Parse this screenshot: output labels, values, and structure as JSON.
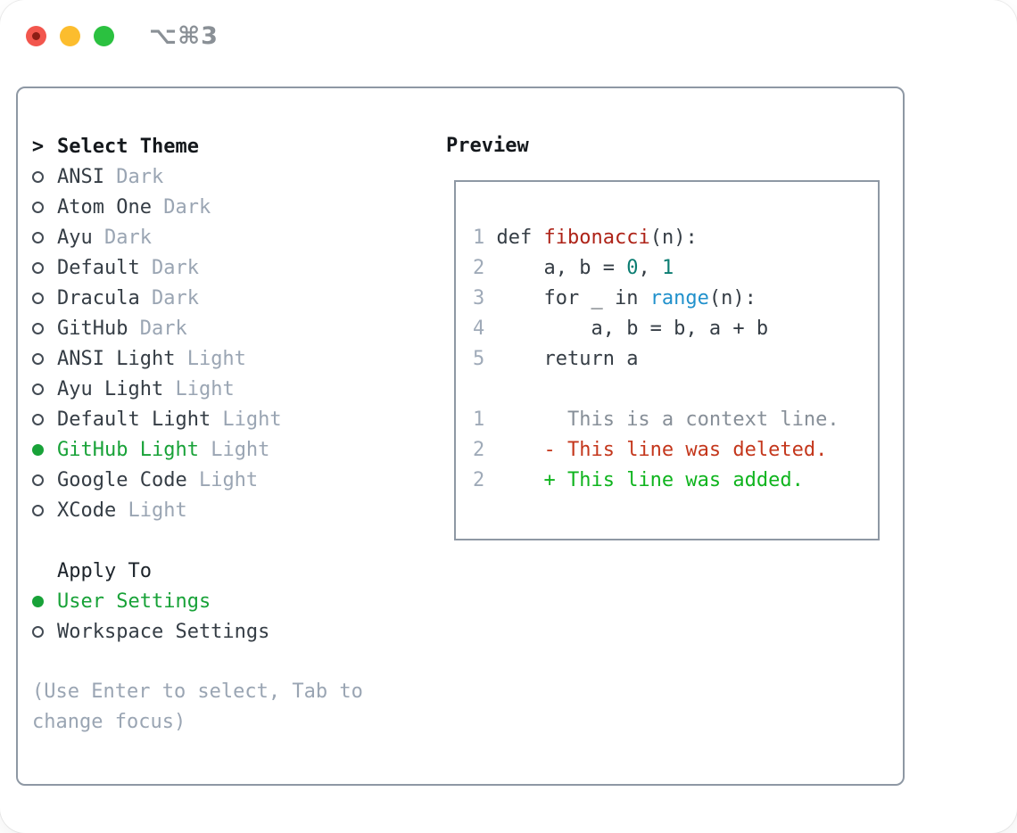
{
  "window": {
    "titlebar_shortcut": "⌥⌘3",
    "traffic_lights": [
      "close",
      "minimize",
      "zoom"
    ]
  },
  "colors": {
    "accent_green": "#18a238",
    "text_dark": "#353d45",
    "muted_gray": "#9aa5b3",
    "border_gray": "#8e98a4",
    "line_number_gray": "#9faab8",
    "func_red": "#ae2318",
    "number_teal": "#0b7d72",
    "builtin_blue": "#2191cc",
    "diff_context_gray": "#878f98",
    "diff_deleted_red": "#c4371c",
    "diff_added_green": "#0fb41e",
    "light_red": "#f2564d",
    "light_yellow": "#fcbd2e",
    "light_green": "#2bc140"
  },
  "panel": {
    "theme_list": {
      "prompt_char": ">",
      "heading": "Select Theme",
      "items": [
        {
          "name": "ANSI",
          "variant": "Dark",
          "selected": false
        },
        {
          "name": "Atom One",
          "variant": "Dark",
          "selected": false
        },
        {
          "name": "Ayu",
          "variant": "Dark",
          "selected": false
        },
        {
          "name": "Default",
          "variant": "Dark",
          "selected": false
        },
        {
          "name": "Dracula",
          "variant": "Dark",
          "selected": false
        },
        {
          "name": "GitHub",
          "variant": "Dark",
          "selected": false
        },
        {
          "name": "ANSI Light",
          "variant": "Light",
          "selected": false
        },
        {
          "name": "Ayu Light",
          "variant": "Light",
          "selected": false
        },
        {
          "name": "Default Light",
          "variant": "Light",
          "selected": false
        },
        {
          "name": "GitHub Light",
          "variant": "Light",
          "selected": true
        },
        {
          "name": "Google Code",
          "variant": "Light",
          "selected": false
        },
        {
          "name": "XCode",
          "variant": "Light",
          "selected": false
        }
      ]
    },
    "apply_to": {
      "heading": "Apply To",
      "options": [
        {
          "label": "User Settings",
          "selected": true
        },
        {
          "label": "Workspace Settings",
          "selected": false
        }
      ]
    },
    "hint_lines": [
      "(Use Enter to select, Tab to",
      "change focus)"
    ],
    "preview": {
      "heading": "Preview",
      "code_lines": [
        {
          "num": "1",
          "segments": [
            {
              "t": " def ",
              "c": "plain"
            },
            {
              "t": "fibonacci",
              "c": "func"
            },
            {
              "t": "(n):",
              "c": "plain"
            }
          ]
        },
        {
          "num": "2",
          "segments": [
            {
              "t": "     a, b = ",
              "c": "plain"
            },
            {
              "t": "0",
              "c": "num"
            },
            {
              "t": ", ",
              "c": "plain"
            },
            {
              "t": "1",
              "c": "num"
            }
          ]
        },
        {
          "num": "3",
          "segments": [
            {
              "t": "     for _ in ",
              "c": "plain"
            },
            {
              "t": "range",
              "c": "builtin"
            },
            {
              "t": "(n):",
              "c": "plain"
            }
          ]
        },
        {
          "num": "4",
          "segments": [
            {
              "t": "         a, b = b, a + b",
              "c": "plain"
            }
          ]
        },
        {
          "num": "5",
          "segments": [
            {
              "t": "     return a",
              "c": "plain"
            }
          ]
        }
      ],
      "diff_lines": [
        {
          "num": "1",
          "segments": [
            {
              "t": "       This is a context line.",
              "c": "context"
            }
          ]
        },
        {
          "num": "2",
          "segments": [
            {
              "t": "     - This line was deleted.",
              "c": "deleted"
            }
          ]
        },
        {
          "num": "2",
          "segments": [
            {
              "t": "     + This line was added.",
              "c": "added"
            }
          ]
        }
      ]
    }
  }
}
